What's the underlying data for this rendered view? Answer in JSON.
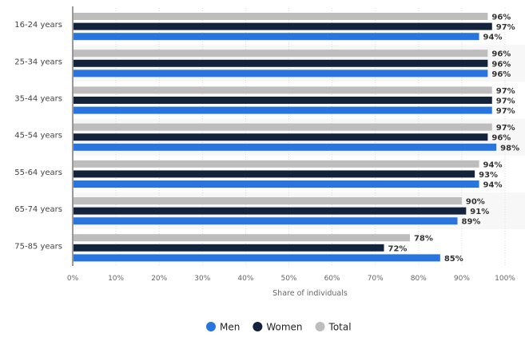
{
  "chart_data": {
    "type": "bar",
    "orientation": "horizontal",
    "categories": [
      "16-24 years",
      "25-34 years",
      "35-44 years",
      "45-54 years",
      "55-64 years",
      "65-74 years",
      "75-85 years"
    ],
    "series": [
      {
        "name": "Total",
        "color": "#bdbdbd",
        "values": [
          96,
          96,
          97,
          97,
          94,
          90,
          78
        ]
      },
      {
        "name": "Women",
        "color": "#14233c",
        "values": [
          97,
          96,
          97,
          96,
          93,
          91,
          72
        ]
      },
      {
        "name": "Men",
        "color": "#2876dd",
        "values": [
          94,
          96,
          97,
          98,
          94,
          89,
          85
        ]
      }
    ],
    "legend_order": [
      "Men",
      "Women",
      "Total"
    ],
    "xlabel": "Share of individuals",
    "xlim": [
      0,
      100
    ],
    "xticks": [
      "0%",
      "10%",
      "20%",
      "30%",
      "40%",
      "50%",
      "60%",
      "70%",
      "80%",
      "90%",
      "100%"
    ],
    "value_suffix": "%",
    "grid": true,
    "legend_position": "bottom"
  }
}
